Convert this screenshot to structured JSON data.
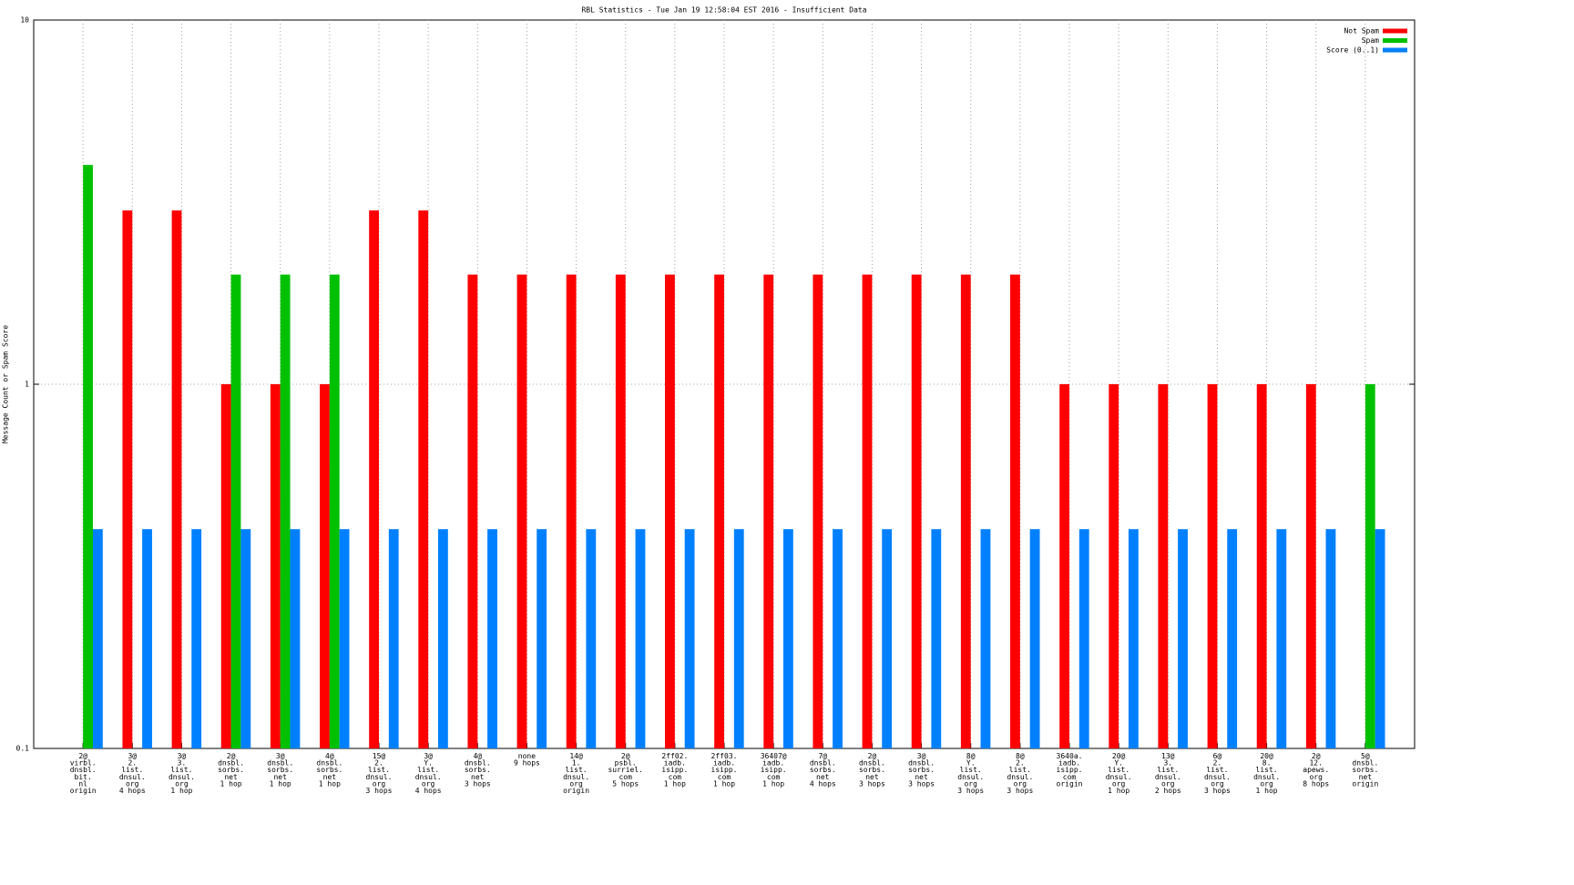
{
  "chart_data": {
    "type": "bar",
    "title": "RBL Statistics - Tue Jan 19 12:58:04 EST 2016 - Insufficient Data",
    "y_label": "Message Count or Spam Score",
    "log_scale": true,
    "grid": true,
    "legend_position": "top-right",
    "ylim": [
      0.1,
      10
    ],
    "yticks": [
      0.1,
      1,
      10
    ],
    "categories": [
      "2@\nvirbl.\ndnsbl.\nbit.\nnl\norigin",
      "3@\n2.\nlist.\ndnsul.\norg\n4 hops",
      "3@\n3.\nlist.\ndnsul.\norg\n1 hop",
      "2@\ndnsbl.\nsorbs.\nnet\n1 hop",
      "3@\ndnsbl.\nsorbs.\nnet\n1 hop",
      "4@\ndnsbl.\nsorbs.\nnet\n1 hop",
      "15@\n2.\nlist.\ndnsul.\norg\n3 hops",
      "3@\nY.\nlist.\ndnsul.\norg\n4 hops",
      "4@\ndnsbl.\nsorbs.\nnet\n3 hops",
      "none\n9 hops",
      "14@\n1.\nlist.\ndnsul.\norg\norigin",
      "2@\npsbl.\nsurriel.\ncom\n5 hops",
      "2ff02.\niadb.\nisipp.\ncom\n1 hop",
      "2ff03.\niadb.\nisipp.\ncom\n1 hop",
      "36407@\niadb.\nisipp.\ncom\n1 hop",
      "7@\ndnsbl.\nsorbs.\nnet\n4 hops",
      "2@\ndnsbl.\nsorbs.\nnet\n3 hops",
      "3@\ndnsbl.\nsorbs.\nnet\n3 hops",
      "8@\nY.\nlist.\ndnsul.\norg\n3 hops",
      "8@\n2.\nlist.\ndnsul.\norg\n3 hops",
      "3640a.\niadb.\nisipp.\ncom\norigin",
      "20@\nY.\nlist.\ndnsul.\norg\n1 hop",
      "13@\n3.\nlist.\ndnsul.\norg\n2 hops",
      "6@\n2.\nlist.\ndnsul.\norg\n3 hops",
      "20@\n8.\nlist.\ndnsul.\norg\n1 hop",
      "2@\n12.\napews.\norg\n8 hops",
      "5@\ndnsbl.\nsorbs.\nnet\norigin"
    ],
    "series": [
      {
        "name": "Not Spam",
        "color": "#ff0000",
        "values": [
          null,
          3,
          3,
          1,
          1,
          1,
          3,
          3,
          2,
          2,
          2,
          2,
          2,
          2,
          2,
          2,
          2,
          2,
          2,
          2,
          1,
          1,
          1,
          1,
          1,
          1,
          null
        ]
      },
      {
        "name": "Spam",
        "color": "#00c000",
        "values": [
          4,
          null,
          null,
          2,
          2,
          2,
          null,
          null,
          null,
          null,
          null,
          null,
          null,
          null,
          null,
          null,
          null,
          null,
          null,
          null,
          null,
          null,
          null,
          null,
          null,
          null,
          1
        ]
      },
      {
        "name": "Score (0..1)",
        "color": "#0080ff",
        "values": [
          0.4,
          0.4,
          0.4,
          0.4,
          0.4,
          0.4,
          0.4,
          0.4,
          0.4,
          0.4,
          0.4,
          0.4,
          0.4,
          0.4,
          0.4,
          0.4,
          0.4,
          0.4,
          0.4,
          0.4,
          0.4,
          0.4,
          0.4,
          0.4,
          0.4,
          0.4,
          0.4
        ]
      }
    ]
  }
}
